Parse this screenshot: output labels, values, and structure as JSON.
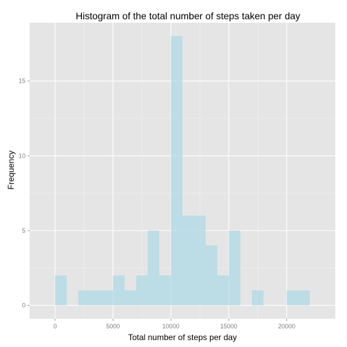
{
  "chart_data": {
    "type": "bar",
    "title": "Histogram of the total number of steps taken per day",
    "xlabel": "Total number of steps per day",
    "ylabel": "Frequency",
    "bin_width": 1000,
    "bins": [
      {
        "x_start": 0,
        "x_end": 1000,
        "count": 2
      },
      {
        "x_start": 2000,
        "x_end": 3000,
        "count": 1
      },
      {
        "x_start": 3000,
        "x_end": 4000,
        "count": 1
      },
      {
        "x_start": 4000,
        "x_end": 5000,
        "count": 1
      },
      {
        "x_start": 5000,
        "x_end": 6000,
        "count": 2
      },
      {
        "x_start": 6000,
        "x_end": 7000,
        "count": 1
      },
      {
        "x_start": 7000,
        "x_end": 8000,
        "count": 2
      },
      {
        "x_start": 8000,
        "x_end": 9000,
        "count": 5
      },
      {
        "x_start": 9000,
        "x_end": 10000,
        "count": 2
      },
      {
        "x_start": 10000,
        "x_end": 11000,
        "count": 18
      },
      {
        "x_start": 11000,
        "x_end": 12000,
        "count": 6
      },
      {
        "x_start": 12000,
        "x_end": 13000,
        "count": 6
      },
      {
        "x_start": 13000,
        "x_end": 14000,
        "count": 4
      },
      {
        "x_start": 14000,
        "x_end": 15000,
        "count": 2
      },
      {
        "x_start": 15000,
        "x_end": 16000,
        "count": 5
      },
      {
        "x_start": 17000,
        "x_end": 18000,
        "count": 1
      },
      {
        "x_start": 20000,
        "x_end": 21000,
        "count": 1
      },
      {
        "x_start": 21000,
        "x_end": 22000,
        "count": 1
      }
    ],
    "xlim": [
      -2200,
      24200
    ],
    "ylim": [
      -0.9,
      18.9
    ],
    "xticks": [
      0,
      5000,
      10000,
      15000,
      20000
    ],
    "yticks": [
      0,
      5,
      10,
      15
    ],
    "grid": true,
    "colors": {
      "panel": "#e5e5e5",
      "grid_major": "#ffffff",
      "grid_minor": "#f2f2f2",
      "bar": "#add8e6",
      "text": "#000000",
      "tick_text": "#7f7f7f"
    }
  }
}
